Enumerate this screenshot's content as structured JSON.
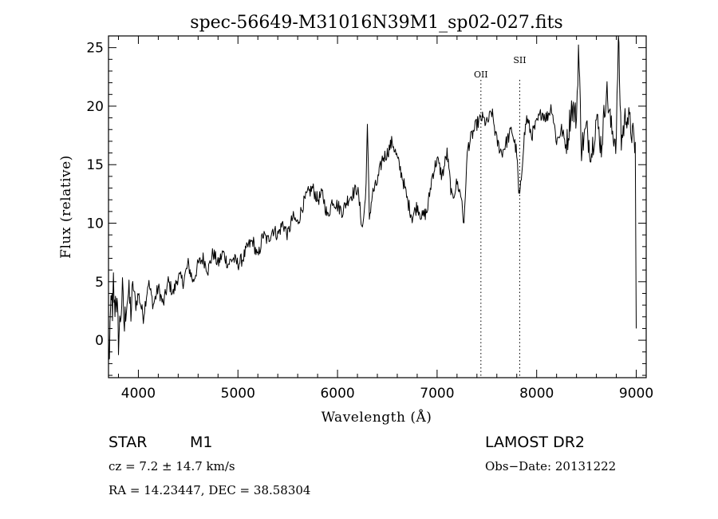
{
  "chart_data": {
    "type": "line",
    "title": "spec-56649-M31016N39M1_sp02-027.fits",
    "xlabel": "Wavelength (Å)",
    "ylabel": "Flux (relative)",
    "xlim": [
      3700,
      9100
    ],
    "ylim": [
      -3.2,
      26
    ],
    "xticks": [
      4000,
      5000,
      6000,
      7000,
      8000,
      9000
    ],
    "yticks": [
      0,
      5,
      10,
      15,
      20,
      25
    ],
    "grid": false,
    "line_color": "#000000",
    "series": [
      {
        "x": [
          3700,
          3710,
          3720,
          3730,
          3740,
          3750,
          3760,
          3775,
          3790,
          3800,
          3820,
          3840,
          3860,
          3880,
          3900,
          3925,
          3950,
          3975,
          4000,
          4050,
          4100,
          4150,
          4200,
          4250,
          4300,
          4350,
          4400,
          4450,
          4500,
          4550,
          4600,
          4650,
          4700,
          4750,
          4800,
          4850,
          4900,
          4950,
          5000,
          5050,
          5100,
          5150,
          5200,
          5250,
          5300,
          5350,
          5400,
          5450,
          5500,
          5550,
          5600,
          5650,
          5700,
          5750,
          5800,
          5850,
          5900,
          5950,
          6000,
          6050,
          6100,
          6150,
          6200,
          6250,
          6280,
          6300,
          6320,
          6350,
          6400,
          6450,
          6500,
          6550,
          6600,
          6650,
          6700,
          6750,
          6800,
          6850,
          6900,
          6950,
          7000,
          7050,
          7100,
          7150,
          7200,
          7250,
          7270,
          7290,
          7310,
          7350,
          7400,
          7450,
          7500,
          7550,
          7600,
          7650,
          7700,
          7750,
          7800,
          7820,
          7835,
          7850,
          7870,
          7900,
          7950,
          8000,
          8050,
          8100,
          8150,
          8200,
          8250,
          8300,
          8350,
          8400,
          8420,
          8450,
          8500,
          8550,
          8600,
          8650,
          8700,
          8750,
          8800,
          8820,
          8850,
          8900,
          8950,
          8990,
          9000
        ],
        "y": [
          0,
          -2,
          2,
          4.5,
          1,
          5,
          2.5,
          4,
          2,
          0,
          2,
          4,
          1,
          3.5,
          4,
          2.5,
          4.5,
          3,
          4,
          2,
          5,
          3,
          4.5,
          3,
          5,
          4,
          5.5,
          5,
          6.5,
          5,
          6.5,
          7,
          6,
          7.5,
          6.5,
          7.5,
          6.5,
          7,
          6.5,
          7,
          8,
          8.5,
          7,
          9,
          8.5,
          9.5,
          9,
          10,
          9,
          10.5,
          10,
          11.5,
          12.5,
          13,
          12,
          12.5,
          10.5,
          12,
          11.5,
          11,
          12,
          12.5,
          13,
          9.5,
          12,
          18,
          10.5,
          12.5,
          13.5,
          15.5,
          16,
          17,
          15.5,
          14,
          12,
          10.5,
          11.5,
          10.5,
          11,
          14,
          15.5,
          14,
          16,
          12,
          13.5,
          12,
          9.5,
          14,
          16.5,
          17.5,
          18.5,
          19,
          18.5,
          19.5,
          17,
          16,
          17,
          18,
          16,
          12.5,
          12.5,
          14.5,
          17,
          19,
          17.5,
          18.5,
          19.5,
          19,
          20,
          17,
          18,
          16.5,
          20,
          19,
          25,
          16.5,
          18,
          16,
          19,
          16.5,
          21.5,
          18,
          17,
          26,
          17,
          19.5,
          18,
          16.5,
          1
        ]
      }
    ],
    "annotations": [
      {
        "label": "OII",
        "x": 7440
      },
      {
        "label": "SII",
        "x": 7830
      }
    ]
  },
  "info": {
    "object_class": "STAR",
    "subclass": "M1",
    "survey": "LAMOST DR2",
    "cz": "cz = 7.2 ± 14.7 km/s",
    "obs_date": "Obs−Date: 20131222",
    "coords": "RA =  14.23447, DEC =  38.58304"
  }
}
